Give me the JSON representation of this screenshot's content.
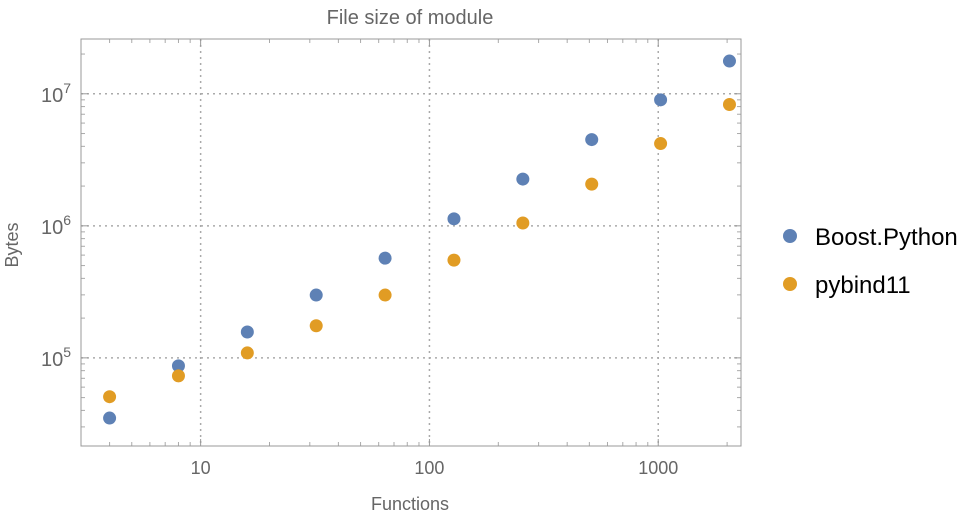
{
  "chart_data": {
    "type": "scatter",
    "title": "File size of module",
    "xlabel": "Functions",
    "ylabel": "Bytes",
    "x_scale": "log",
    "y_scale": "log",
    "xlim": [
      3,
      2300
    ],
    "ylim": [
      21500,
      26000000
    ],
    "x_ticks": [
      {
        "value": 10,
        "label": "10"
      },
      {
        "value": 100,
        "label": "100"
      },
      {
        "value": 1000,
        "label": "1000"
      }
    ],
    "y_ticks": [
      {
        "value": 100000,
        "base": "10",
        "exp": "5"
      },
      {
        "value": 1000000,
        "base": "10",
        "exp": "6"
      },
      {
        "value": 10000000,
        "base": "10",
        "exp": "7"
      }
    ],
    "grid": true,
    "legend_placement": "right",
    "x": [
      4,
      8,
      16,
      32,
      64,
      128,
      256,
      512,
      1024,
      2048
    ],
    "series": [
      {
        "name": "Boost.Python",
        "color": "#5E81B5",
        "values": [
          35000,
          87000,
          157000,
          299000,
          569000,
          1130000,
          2260000,
          4500000,
          9000000,
          17700000
        ]
      },
      {
        "name": "pybind11",
        "color": "#E19C24",
        "values": [
          50800,
          73000,
          109000,
          175000,
          299000,
          550000,
          1050000,
          2070000,
          4200000,
          8300000
        ]
      }
    ]
  }
}
